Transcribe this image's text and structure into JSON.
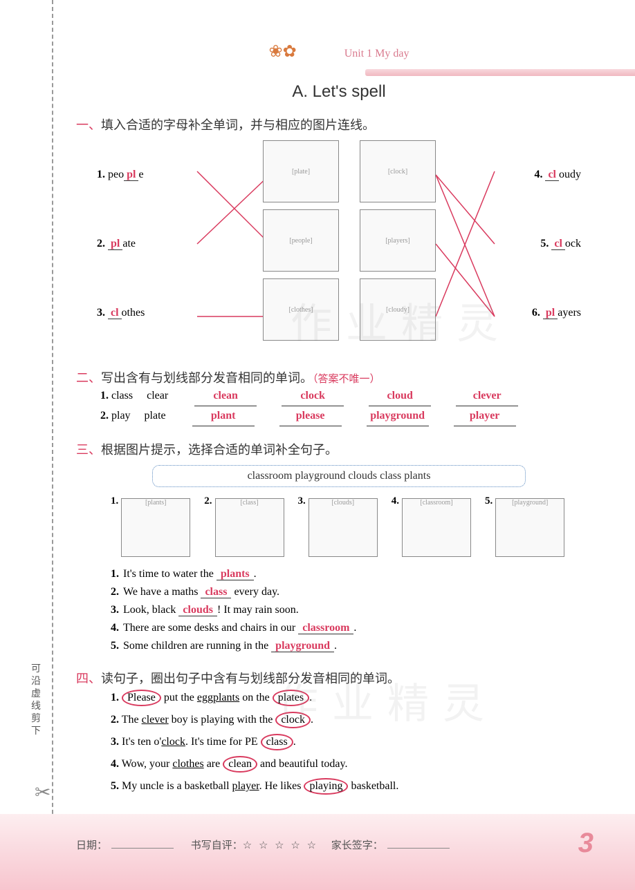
{
  "header": {
    "unit": "Unit 1  My day",
    "title": "A. Let's spell"
  },
  "cutline_note": "可沿虚线剪下",
  "section1": {
    "label": "一、填入合适的字母补全单词，并与相应的图片连线。",
    "left": [
      {
        "num": "1.",
        "pre": "peo",
        "ans": "pl",
        "post": "e"
      },
      {
        "num": "2.",
        "pre": "",
        "ans": "pl",
        "post": "ate"
      },
      {
        "num": "3.",
        "pre": "",
        "ans": "cl",
        "post": "othes"
      }
    ],
    "right": [
      {
        "num": "4.",
        "pre": "",
        "ans": "cl",
        "post": "oudy"
      },
      {
        "num": "5.",
        "pre": "",
        "ans": "cl",
        "post": "ock"
      },
      {
        "num": "6.",
        "pre": "",
        "ans": "pl",
        "post": "ayers"
      }
    ],
    "pics": [
      [
        "plate",
        "clock"
      ],
      [
        "people",
        "players"
      ],
      [
        "clothes",
        "cloudy"
      ]
    ],
    "line_color": "#d93a5e"
  },
  "section2": {
    "label": "二、写出含有与划线部分发音相同的单词。",
    "hint": "（答案不唯一）",
    "rows": [
      {
        "num": "1.",
        "given": [
          "class",
          "clear"
        ],
        "answers": [
          "clean",
          "clock",
          "cloud",
          "clever"
        ]
      },
      {
        "num": "2.",
        "given": [
          "play",
          "plate"
        ],
        "answers": [
          "plant",
          "please",
          "playground",
          "player"
        ]
      }
    ]
  },
  "section3": {
    "label": "三、根据图片提示，选择合适的单词补全句子。",
    "bank": "classroom    playground    clouds    class    plants",
    "pics": [
      "plants",
      "class",
      "clouds",
      "classroom",
      "playground"
    ],
    "sentences": [
      {
        "num": "1.",
        "pre": "It's time to water the ",
        "ans": "plants",
        "post": "."
      },
      {
        "num": "2.",
        "pre": "We have a maths ",
        "ans": "class",
        "post": " every day."
      },
      {
        "num": "3.",
        "pre": "Look, black ",
        "ans": "clouds",
        "post": "! It may rain soon."
      },
      {
        "num": "4.",
        "pre": "There are some desks and chairs in our ",
        "ans": "classroom",
        "post": "."
      },
      {
        "num": "5.",
        "pre": "Some children are running in the ",
        "ans": "playground",
        "post": "."
      }
    ]
  },
  "section4": {
    "label": "四、读句子，圈出句子中含有与划线部分发音相同的单词。",
    "items": [
      {
        "num": "1.",
        "parts": [
          {
            "t": "circled",
            "v": "Please"
          },
          {
            "t": "txt",
            "v": " put the "
          },
          {
            "t": "under",
            "v": "eggplants"
          },
          {
            "t": "txt",
            "v": " on the "
          },
          {
            "t": "circled",
            "v": "plates"
          },
          {
            "t": "txt",
            "v": "."
          }
        ]
      },
      {
        "num": "2.",
        "parts": [
          {
            "t": "txt",
            "v": "The "
          },
          {
            "t": "under",
            "v": "clever"
          },
          {
            "t": "txt",
            "v": " boy is playing with the "
          },
          {
            "t": "circled",
            "v": "clock"
          },
          {
            "t": "txt",
            "v": "."
          }
        ]
      },
      {
        "num": "3.",
        "parts": [
          {
            "t": "txt",
            "v": "It's ten o'"
          },
          {
            "t": "under",
            "v": "clock"
          },
          {
            "t": "txt",
            "v": ". It's time for PE "
          },
          {
            "t": "circled",
            "v": "class"
          },
          {
            "t": "txt",
            "v": "."
          }
        ]
      },
      {
        "num": "4.",
        "parts": [
          {
            "t": "txt",
            "v": "Wow, your "
          },
          {
            "t": "under",
            "v": "clothes"
          },
          {
            "t": "txt",
            "v": " are "
          },
          {
            "t": "circled",
            "v": "clean"
          },
          {
            "t": "txt",
            "v": " and beautiful today."
          }
        ]
      },
      {
        "num": "5.",
        "parts": [
          {
            "t": "txt",
            "v": "My uncle is a basketball "
          },
          {
            "t": "under",
            "v": "player"
          },
          {
            "t": "txt",
            "v": ". He likes "
          },
          {
            "t": "circled",
            "v": "playing"
          },
          {
            "t": "txt",
            "v": " basketball."
          }
        ]
      }
    ]
  },
  "footer": {
    "date": "日期：",
    "self": "书写自评：",
    "stars": "☆ ☆ ☆ ☆ ☆",
    "parent": "家长签字：",
    "pagenum": "3"
  },
  "watermarks": [
    "作业精灵",
    "作业精灵"
  ]
}
